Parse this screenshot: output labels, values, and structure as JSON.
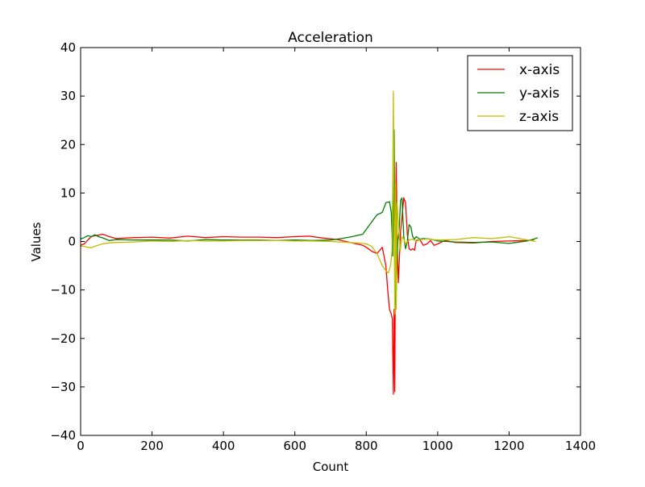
{
  "chart_data": {
    "type": "line",
    "title": "Acceleration",
    "xlabel": "Count",
    "ylabel": "Values",
    "xlim": [
      0,
      1400
    ],
    "ylim": [
      -40,
      40
    ],
    "xticks": [
      0,
      200,
      400,
      600,
      800,
      1000,
      1200,
      1400
    ],
    "xtick_labels": [
      "0",
      "200",
      "400",
      "600",
      "800",
      "1000",
      "1200",
      "1400"
    ],
    "yticks": [
      -40,
      -30,
      -20,
      -10,
      0,
      10,
      20,
      30,
      40
    ],
    "ytick_labels": [
      "−40",
      "−30",
      "−20",
      "−10",
      "0",
      "10",
      "20",
      "30",
      "40"
    ],
    "grid": false,
    "legend_position": "top-right",
    "series": [
      {
        "name": "x-axis",
        "color": "#ff0000",
        "x": [
          0,
          10,
          20,
          30,
          40,
          50,
          60,
          70,
          80,
          100,
          150,
          200,
          250,
          300,
          350,
          400,
          450,
          500,
          550,
          600,
          640,
          680,
          720,
          760,
          790,
          800,
          815,
          830,
          845,
          855,
          860,
          865,
          870,
          873,
          876,
          878,
          880,
          882,
          884,
          886,
          888,
          890,
          893,
          896,
          900,
          905,
          910,
          915,
          920,
          925,
          930,
          935,
          940,
          950,
          960,
          970,
          980,
          990,
          1000,
          1020,
          1050,
          1100,
          1150,
          1200,
          1250,
          1270
        ],
        "y": [
          -0.8,
          -0.5,
          0.3,
          1.0,
          1.2,
          1.3,
          1.5,
          1.3,
          1.0,
          0.6,
          0.8,
          0.9,
          0.7,
          1.1,
          0.8,
          1.0,
          0.9,
          0.9,
          0.8,
          1.0,
          1.1,
          0.7,
          0.4,
          -0.3,
          -0.8,
          -1.2,
          -2.0,
          -2.5,
          -1.2,
          -5.0,
          -10.0,
          -14.0,
          -15.0,
          -16.0,
          -31.5,
          -14.0,
          -31.0,
          5.0,
          16.3,
          2.0,
          -4.0,
          -8.5,
          -3.0,
          2.0,
          5.0,
          9.0,
          8.0,
          1.5,
          -1.5,
          -1.8,
          -1.5,
          -1.8,
          0.2,
          0.4,
          -0.8,
          -0.5,
          0.2,
          -0.8,
          -0.5,
          0.2,
          -0.2,
          -0.3,
          0.0,
          0.1,
          0.2,
          0.4
        ]
      },
      {
        "name": "y-axis",
        "color": "#008000",
        "x": [
          0,
          10,
          20,
          30,
          40,
          50,
          60,
          70,
          80,
          100,
          150,
          200,
          250,
          300,
          350,
          400,
          450,
          500,
          550,
          600,
          650,
          700,
          730,
          760,
          790,
          800,
          815,
          830,
          845,
          855,
          865,
          870,
          874,
          876,
          878,
          880,
          882,
          884,
          886,
          888,
          892,
          896,
          900,
          905,
          910,
          915,
          920,
          925,
          930,
          935,
          940,
          950,
          960,
          980,
          1000,
          1050,
          1100,
          1150,
          1200,
          1250,
          1270,
          1280
        ],
        "y": [
          0.5,
          0.8,
          1.2,
          1.0,
          1.4,
          1.0,
          0.8,
          0.5,
          0.2,
          0.4,
          0.3,
          0.3,
          0.3,
          0.1,
          0.4,
          0.3,
          0.3,
          0.3,
          0.2,
          0.3,
          0.2,
          0.3,
          0.6,
          1.0,
          1.5,
          2.5,
          4.0,
          5.5,
          6.0,
          8.0,
          8.2,
          6.0,
          -3.0,
          6.0,
          23.0,
          5.0,
          -13.0,
          -10.0,
          -5.0,
          0.0,
          2.0,
          8.5,
          9.0,
          1.0,
          -1.5,
          0.0,
          3.5,
          3.0,
          1.0,
          0.5,
          1.0,
          0.5,
          0.6,
          0.5,
          0.1,
          -0.1,
          -0.2,
          -0.1,
          -0.4,
          0.1,
          0.5,
          0.8
        ]
      },
      {
        "name": "z-axis",
        "color": "#bfbf00",
        "x": [
          0,
          10,
          20,
          30,
          40,
          60,
          80,
          100,
          150,
          200,
          250,
          300,
          350,
          400,
          450,
          500,
          550,
          600,
          650,
          700,
          750,
          790,
          800,
          815,
          830,
          845,
          855,
          862,
          868,
          872,
          874,
          876,
          878,
          880,
          882,
          884,
          886,
          890,
          895,
          900,
          905,
          910,
          915,
          920,
          930,
          940,
          950,
          970,
          1000,
          1050,
          1100,
          1150,
          1180,
          1200,
          1230,
          1260,
          1275
        ],
        "y": [
          -1.0,
          -1.0,
          -1.2,
          -1.3,
          -1.0,
          -0.5,
          -0.3,
          -0.2,
          -0.1,
          0.1,
          0.0,
          0.2,
          0.1,
          0.1,
          0.2,
          0.2,
          0.2,
          0.1,
          0.1,
          0.0,
          -0.2,
          -0.4,
          -0.5,
          -1.0,
          -2.5,
          -5.0,
          -6.0,
          -6.5,
          -5.0,
          -2.0,
          10.0,
          31.0,
          8.0,
          -15.0,
          12.0,
          -14.0,
          8.0,
          4.0,
          -2.0,
          1.0,
          0.5,
          -0.5,
          0.0,
          0.3,
          0.5,
          0.0,
          0.4,
          0.5,
          0.3,
          0.4,
          0.8,
          0.6,
          0.8,
          1.0,
          0.6,
          0.2,
          0.0
        ]
      }
    ]
  }
}
